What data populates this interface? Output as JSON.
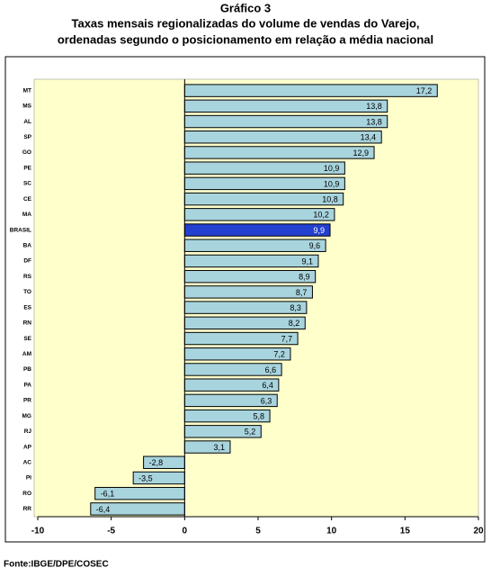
{
  "chart_data": {
    "type": "bar",
    "orientation": "horizontal",
    "title": "Gráfico 3",
    "subtitle": [
      "Taxas mensais regionalizadas  do volume de vendas do Varejo,",
      "ordenadas segundo o posicionamento em relação a média nacional"
    ],
    "source": "Fonte:IBGE/DPE/COSEC",
    "categories": [
      "MT",
      "MS",
      "AL",
      "SP",
      "GO",
      "PE",
      "SC",
      "CE",
      "MA",
      "BRASIL",
      "BA",
      "DF",
      "RS",
      "TO",
      "ES",
      "RN",
      "SE",
      "AM",
      "PB",
      "PA",
      "PR",
      "MG",
      "RJ",
      "AP",
      "AC",
      "PI",
      "RO",
      "RR"
    ],
    "values": [
      17.2,
      13.8,
      13.8,
      13.4,
      12.9,
      10.9,
      10.9,
      10.8,
      10.2,
      9.9,
      9.6,
      9.1,
      8.9,
      8.7,
      8.3,
      8.2,
      7.7,
      7.2,
      6.6,
      6.4,
      6.3,
      5.8,
      5.2,
      3.1,
      -2.8,
      -3.5,
      -6.1,
      -6.4
    ],
    "value_labels": [
      "17,2",
      "13,8",
      "13,8",
      "13,4",
      "12,9",
      "10,9",
      "10,9",
      "10,8",
      "10,2",
      "9,9",
      "9,6",
      "9,1",
      "8,9",
      "8,7",
      "8,3",
      "8,2",
      "7,7",
      "7,2",
      "6,6",
      "6,4",
      "6,3",
      "5,8",
      "5,2",
      "3,1",
      "-2,8",
      "-3,5",
      "-6,1",
      "-6,4"
    ],
    "colors": [
      "#a8d4de",
      "#a8d4de",
      "#a8d4de",
      "#a8d4de",
      "#a8d4de",
      "#a8d4de",
      "#a8d4de",
      "#a8d4de",
      "#a8d4de",
      "#2440d0",
      "#a8d4de",
      "#a8d4de",
      "#a8d4de",
      "#a8d4de",
      "#a8d4de",
      "#a8d4de",
      "#a8d4de",
      "#a8d4de",
      "#a8d4de",
      "#a8d4de",
      "#a8d4de",
      "#a8d4de",
      "#a8d4de",
      "#a8d4de",
      "#a8d4de",
      "#a8d4de",
      "#a8d4de",
      "#a8d4de"
    ],
    "xlim": [
      -10,
      20
    ],
    "xticks": [
      -10,
      -5,
      0,
      5,
      10,
      15,
      20
    ]
  }
}
